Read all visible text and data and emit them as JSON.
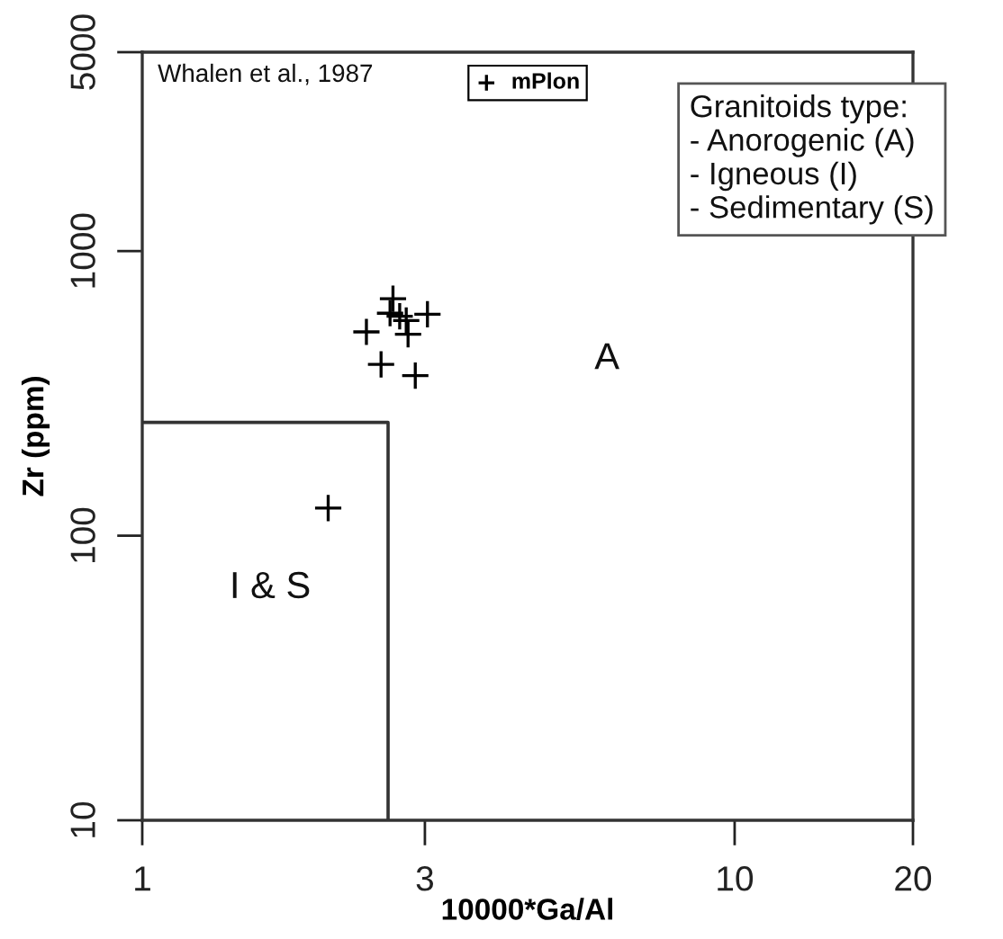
{
  "chart_data": {
    "type": "scatter",
    "xlabel": "10000*Ga/Al",
    "ylabel": "Zr (ppm)",
    "log": "xy",
    "xlim": [
      1,
      20
    ],
    "ylim": [
      10,
      5000
    ],
    "xticks": [
      1,
      3,
      10,
      20
    ],
    "yticks": [
      10,
      100,
      1000,
      5000
    ],
    "legend": "top",
    "marker": "cross",
    "series": [
      {
        "name": "mPlon",
        "color": "#000000",
        "x": [
          2.65,
          2.62,
          2.72,
          2.79,
          3.03,
          2.39,
          2.81,
          2.53,
          2.89,
          2.06
        ],
        "values": [
          680,
          605,
          590,
          570,
          600,
          520,
          510,
          400,
          365,
          125
        ]
      },
      {
        "type": "line",
        "color": "#333333",
        "marker": "none",
        "x": [
          1,
          2.6,
          2.6
        ],
        "values": [
          250,
          250,
          10
        ]
      }
    ],
    "annotations": [
      "Whalen et al., 1987",
      "Granitoids type:\n- Anorogenic (A)\n- Igneous (I)\n- Sedimentary (S)",
      "A",
      "I & S"
    ]
  }
}
